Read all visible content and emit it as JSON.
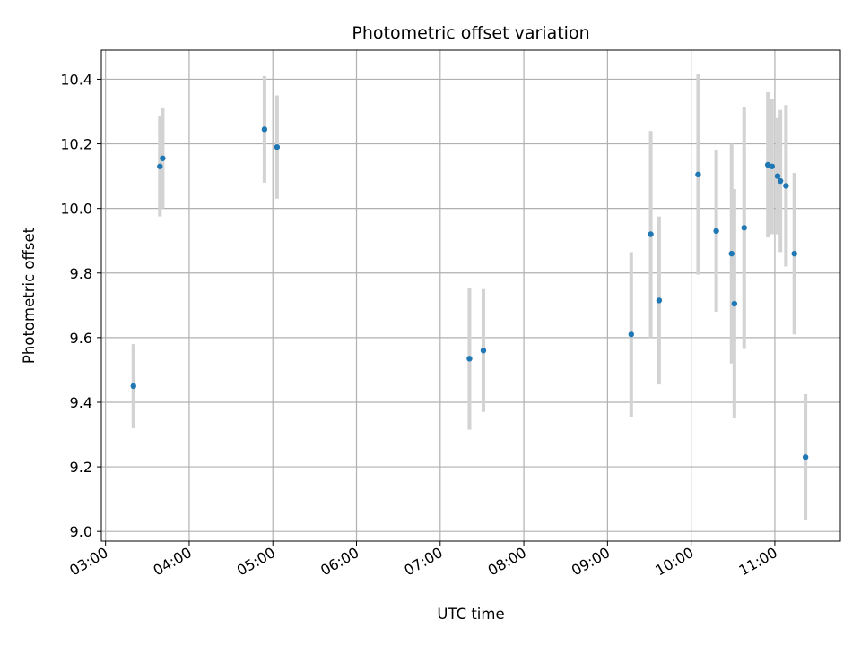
{
  "chart_data": {
    "type": "scatter",
    "title": "Photometric offset variation",
    "xlabel": "UTC time",
    "ylabel": "Photometric offset",
    "xlim": [
      "02:57",
      "11:47"
    ],
    "ylim": [
      8.97,
      10.49
    ],
    "x_ticks": [
      "03:00",
      "04:00",
      "05:00",
      "06:00",
      "07:00",
      "08:00",
      "09:00",
      "10:00",
      "11:00"
    ],
    "y_ticks": [
      "9.0",
      "9.2",
      "9.4",
      "9.6",
      "9.8",
      "10.0",
      "10.2",
      "10.4"
    ],
    "grid": true,
    "marker_color": "#1f77b4",
    "errorbar_color": "#d3d3d3",
    "series": [
      {
        "x": [
          "03:20",
          "03:39",
          "03:41",
          "04:54",
          "05:03",
          "07:21",
          "07:31",
          "09:17",
          "09:31",
          "09:37",
          "10:05",
          "10:18",
          "10:29",
          "10:31",
          "10:38",
          "10:55",
          "10:58",
          "11:02",
          "11:04",
          "11:08",
          "11:14",
          "11:22"
        ],
        "y": [
          9.45,
          10.13,
          10.155,
          10.245,
          10.19,
          9.535,
          9.56,
          9.61,
          9.92,
          9.715,
          10.105,
          9.93,
          9.86,
          9.705,
          9.94,
          10.135,
          10.13,
          10.1,
          10.085,
          10.07,
          9.86,
          9.23
        ],
        "yerr": [
          0.13,
          0.155,
          0.155,
          0.165,
          0.16,
          0.22,
          0.19,
          0.255,
          0.32,
          0.26,
          0.31,
          0.25,
          0.34,
          0.355,
          0.375,
          0.225,
          0.21,
          0.18,
          0.22,
          0.25,
          0.25,
          0.195
        ]
      }
    ]
  }
}
